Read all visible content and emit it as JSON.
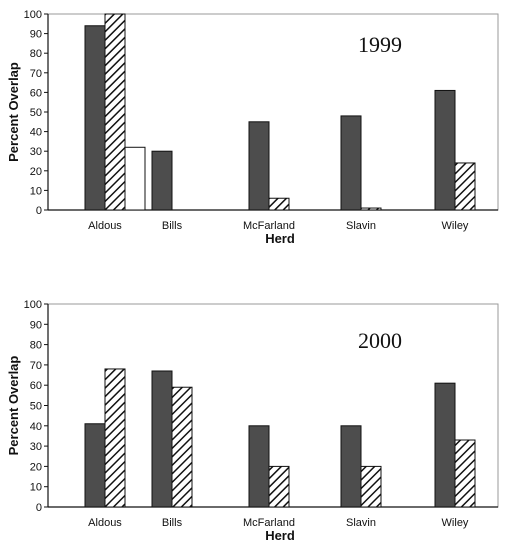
{
  "chart_data": [
    {
      "type": "bar",
      "title": "1999",
      "xlabel": "Herd",
      "ylabel": "Percent Overlap",
      "ylim": [
        0,
        100
      ],
      "yticks": [
        0,
        10,
        20,
        30,
        40,
        50,
        60,
        70,
        80,
        90,
        100
      ],
      "categories": [
        "Aldous",
        "Bills",
        "McFarland",
        "Slavin",
        "Wiley"
      ],
      "series": [
        {
          "values": [
            94,
            30,
            45,
            48,
            61
          ],
          "color": "#4d4d4d",
          "fill": "solid"
        },
        {
          "values": [
            100,
            null,
            6,
            1,
            24
          ],
          "color": "#111111",
          "fill": "hatch"
        },
        {
          "values": [
            32,
            null,
            null,
            null,
            null
          ],
          "color": "#ffffff",
          "fill": "light"
        }
      ],
      "grid": false
    },
    {
      "type": "bar",
      "title": "2000",
      "xlabel": "Herd",
      "ylabel": "Percent Overlap",
      "ylim": [
        0,
        100
      ],
      "yticks": [
        0,
        10,
        20,
        30,
        40,
        50,
        60,
        70,
        80,
        90,
        100
      ],
      "categories": [
        "Aldous",
        "Bills",
        "McFarland",
        "Slavin",
        "Wiley"
      ],
      "series": [
        {
          "values": [
            41,
            67,
            40,
            40,
            61
          ],
          "color": "#4d4d4d",
          "fill": "solid"
        },
        {
          "values": [
            68,
            59,
            20,
            20,
            33
          ],
          "color": "#111111",
          "fill": "hatch"
        }
      ],
      "grid": false
    }
  ]
}
